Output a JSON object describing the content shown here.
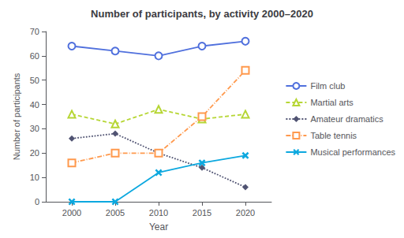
{
  "chart_data": {
    "type": "line",
    "title": "Number of participants, by activity 2000–2020",
    "xlabel": "Year",
    "ylabel": "Number of participants",
    "x": [
      2000,
      2005,
      2010,
      2015,
      2020
    ],
    "series": [
      {
        "name": "Film club",
        "values": [
          64,
          62,
          60,
          64,
          66
        ],
        "marker": "circle",
        "line_style": "solid"
      },
      {
        "name": "Martial arts",
        "values": [
          36,
          32,
          38,
          34,
          36
        ],
        "marker": "triangle",
        "line_style": "dashed"
      },
      {
        "name": "Amateur dramatics",
        "values": [
          26,
          28,
          20,
          14,
          6
        ],
        "marker": "diamond",
        "line_style": "dotted"
      },
      {
        "name": "Table tennis",
        "values": [
          16,
          20,
          20,
          35,
          54
        ],
        "marker": "square",
        "line_style": "dashdot"
      },
      {
        "name": "Musical performances",
        "values": [
          0,
          0,
          12,
          16,
          19
        ],
        "marker": "x",
        "line_style": "solid"
      }
    ],
    "xlim": [
      1997,
      2023
    ],
    "xticks": [
      2000,
      2005,
      2010,
      2015,
      2020
    ],
    "ylim": [
      0,
      70
    ],
    "yticks": [
      0,
      10,
      20,
      30,
      40,
      50,
      60,
      70
    ],
    "grid": false,
    "legend": "right"
  }
}
